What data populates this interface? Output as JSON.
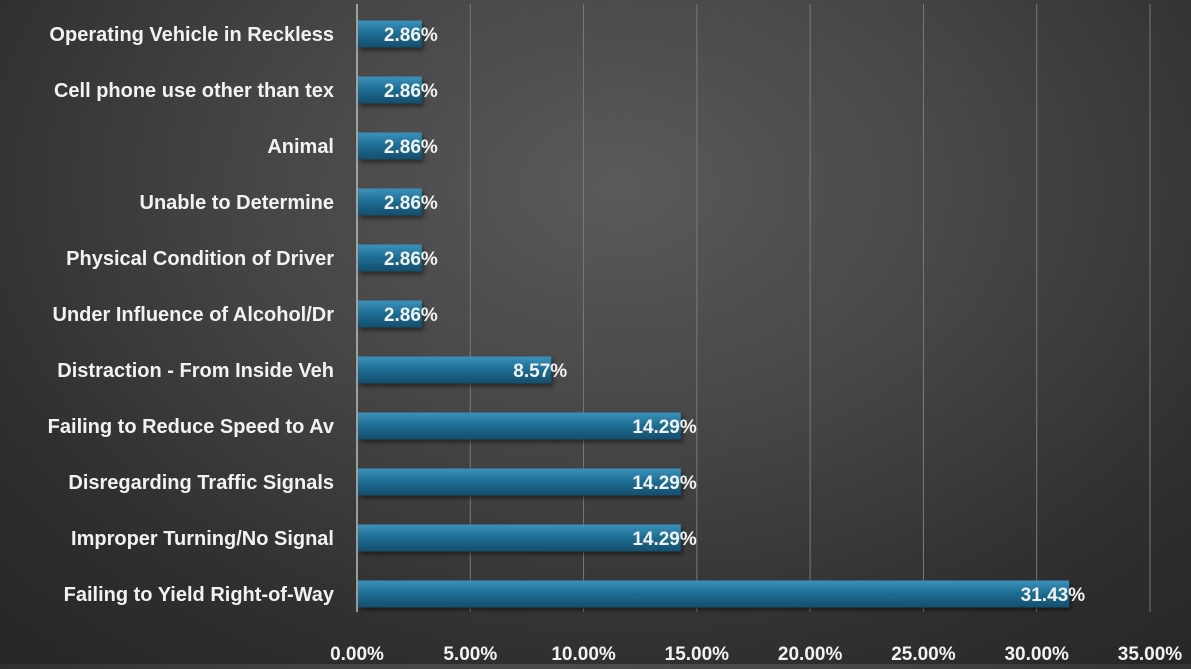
{
  "chart_data": {
    "type": "bar",
    "orientation": "horizontal",
    "title": "",
    "xlabel": "",
    "ylabel": "",
    "categories": [
      "Operating Vehicle in Reckless",
      "Cell phone use other than tex",
      "Animal",
      "Unable to Determine",
      "Physical Condition of Driver",
      "Under Influence of Alcohol/Dr",
      "Distraction - From Inside Veh",
      "Failing to Reduce Speed to Av",
      "Disregarding Traffic Signals",
      "Improper Turning/No Signal",
      "Failing to Yield Right-of-Way"
    ],
    "values": [
      2.86,
      2.86,
      2.86,
      2.86,
      2.86,
      2.86,
      8.57,
      14.29,
      14.29,
      14.29,
      31.43
    ],
    "data_labels": [
      "2.86%",
      "2.86%",
      "2.86%",
      "2.86%",
      "2.86%",
      "2.86%",
      "8.57%",
      "14.29%",
      "14.29%",
      "14.29%",
      "31.43%"
    ],
    "xlim": [
      0,
      35
    ],
    "xticks": [
      0,
      5,
      10,
      15,
      20,
      25,
      30,
      35
    ],
    "xtick_labels": [
      "0.00%",
      "5.00%",
      "10.00%",
      "15.00%",
      "20.00%",
      "25.00%",
      "30.00%",
      "35.00%"
    ],
    "grid": "vertical",
    "legend": "none",
    "bar_color": "#1f6f95",
    "background": "#3f3f3f"
  }
}
